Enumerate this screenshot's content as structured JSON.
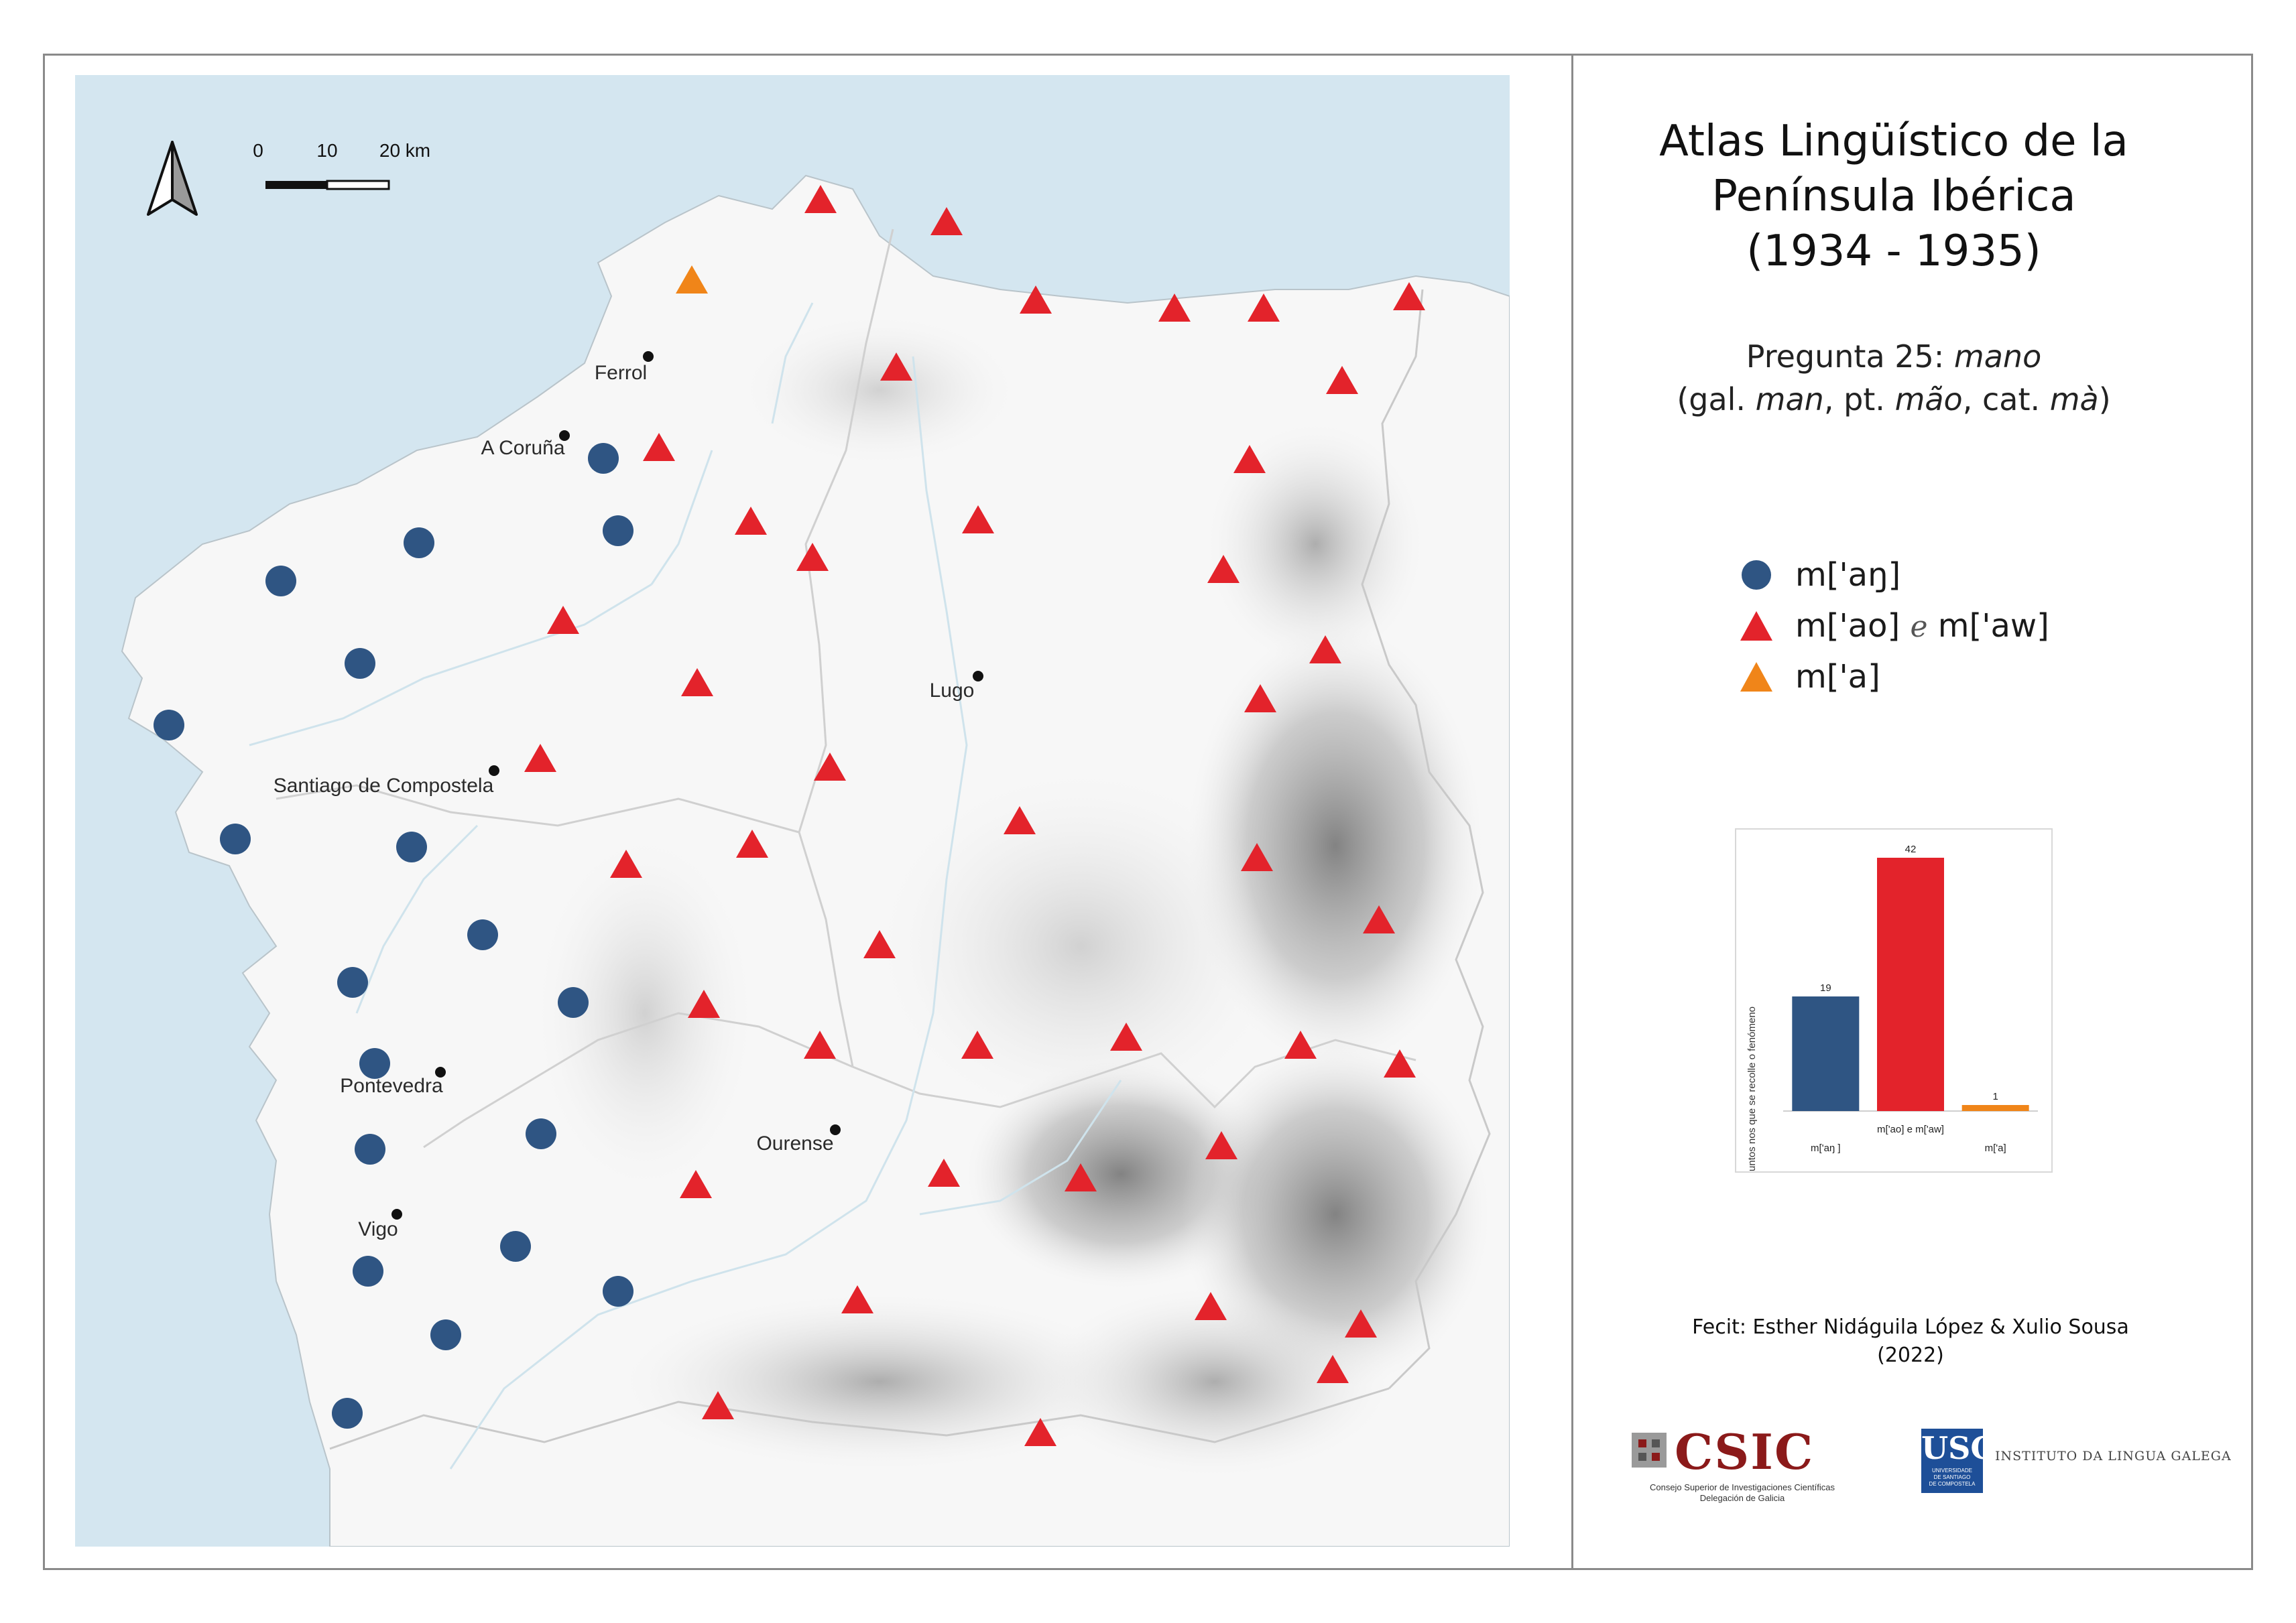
{
  "title": {
    "line1": "Atlas Lingüístico de la",
    "line2": "Península Ibérica",
    "line3": "(1934 - 1935)"
  },
  "question": {
    "prefix": "Pregunta 25: ",
    "word": "mano",
    "gloss_open": "(gal. ",
    "gal": "man",
    "pt_sep": ", pt. ",
    "pt": "mão",
    "cat_sep": ", cat. ",
    "cat": "mà",
    "gloss_close": ")"
  },
  "legend": [
    {
      "symbol": "circle",
      "color": "#2f5583",
      "label": "m['aŋ]"
    },
    {
      "symbol": "triangle",
      "color": "#e3232b",
      "label_a": "m['ao]",
      "conj": "e",
      "label_b": "m['aw]"
    },
    {
      "symbol": "triangle",
      "color": "#f08519",
      "label": "m['a]"
    }
  ],
  "scale_bar": {
    "ticks": [
      "0",
      "10",
      "20 km"
    ]
  },
  "north_arrow": "north-arrow-icon",
  "cities": [
    {
      "name": "Ferrol"
    },
    {
      "name": "A Coruña"
    },
    {
      "name": "Lugo"
    },
    {
      "name": "Santiago de Compostela"
    },
    {
      "name": "Pontevedra"
    },
    {
      "name": "Ourense"
    },
    {
      "name": "Vigo"
    }
  ],
  "chart_data": {
    "type": "bar",
    "ylabel": "Puntos nos que se recolle o fenómeno",
    "categories": [
      "m['aŋ ]",
      "m['ao] e m['aw]",
      "m['a]"
    ],
    "values": [
      19,
      42,
      1
    ],
    "colors": [
      "#2f5583",
      "#e3232b",
      "#f08519"
    ],
    "ylim": [
      0,
      42
    ]
  },
  "credit": {
    "line1": "Fecit: Esther Nidáguila López & Xulio Sousa",
    "line2": "(2022)"
  },
  "logos": {
    "csic": "CSIC",
    "csic_sub1": "Consejo Superior de Investigaciones Científicas",
    "csic_sub2": "Delegación de Galicia",
    "usc": "USC",
    "usc_sub1": "UNIVERSIDADE",
    "usc_sub2": "DE SANTIAGO",
    "usc_sub3": "DE COMPOSTELA",
    "ilg": "INSTITUTO DA LINGUA GALEGA"
  },
  "colors": {
    "sea": "#d4e6f0",
    "land": "#f7f7f7",
    "circle": "#2f5583",
    "triangle_red": "#e3232b",
    "triangle_orange": "#f08519"
  }
}
